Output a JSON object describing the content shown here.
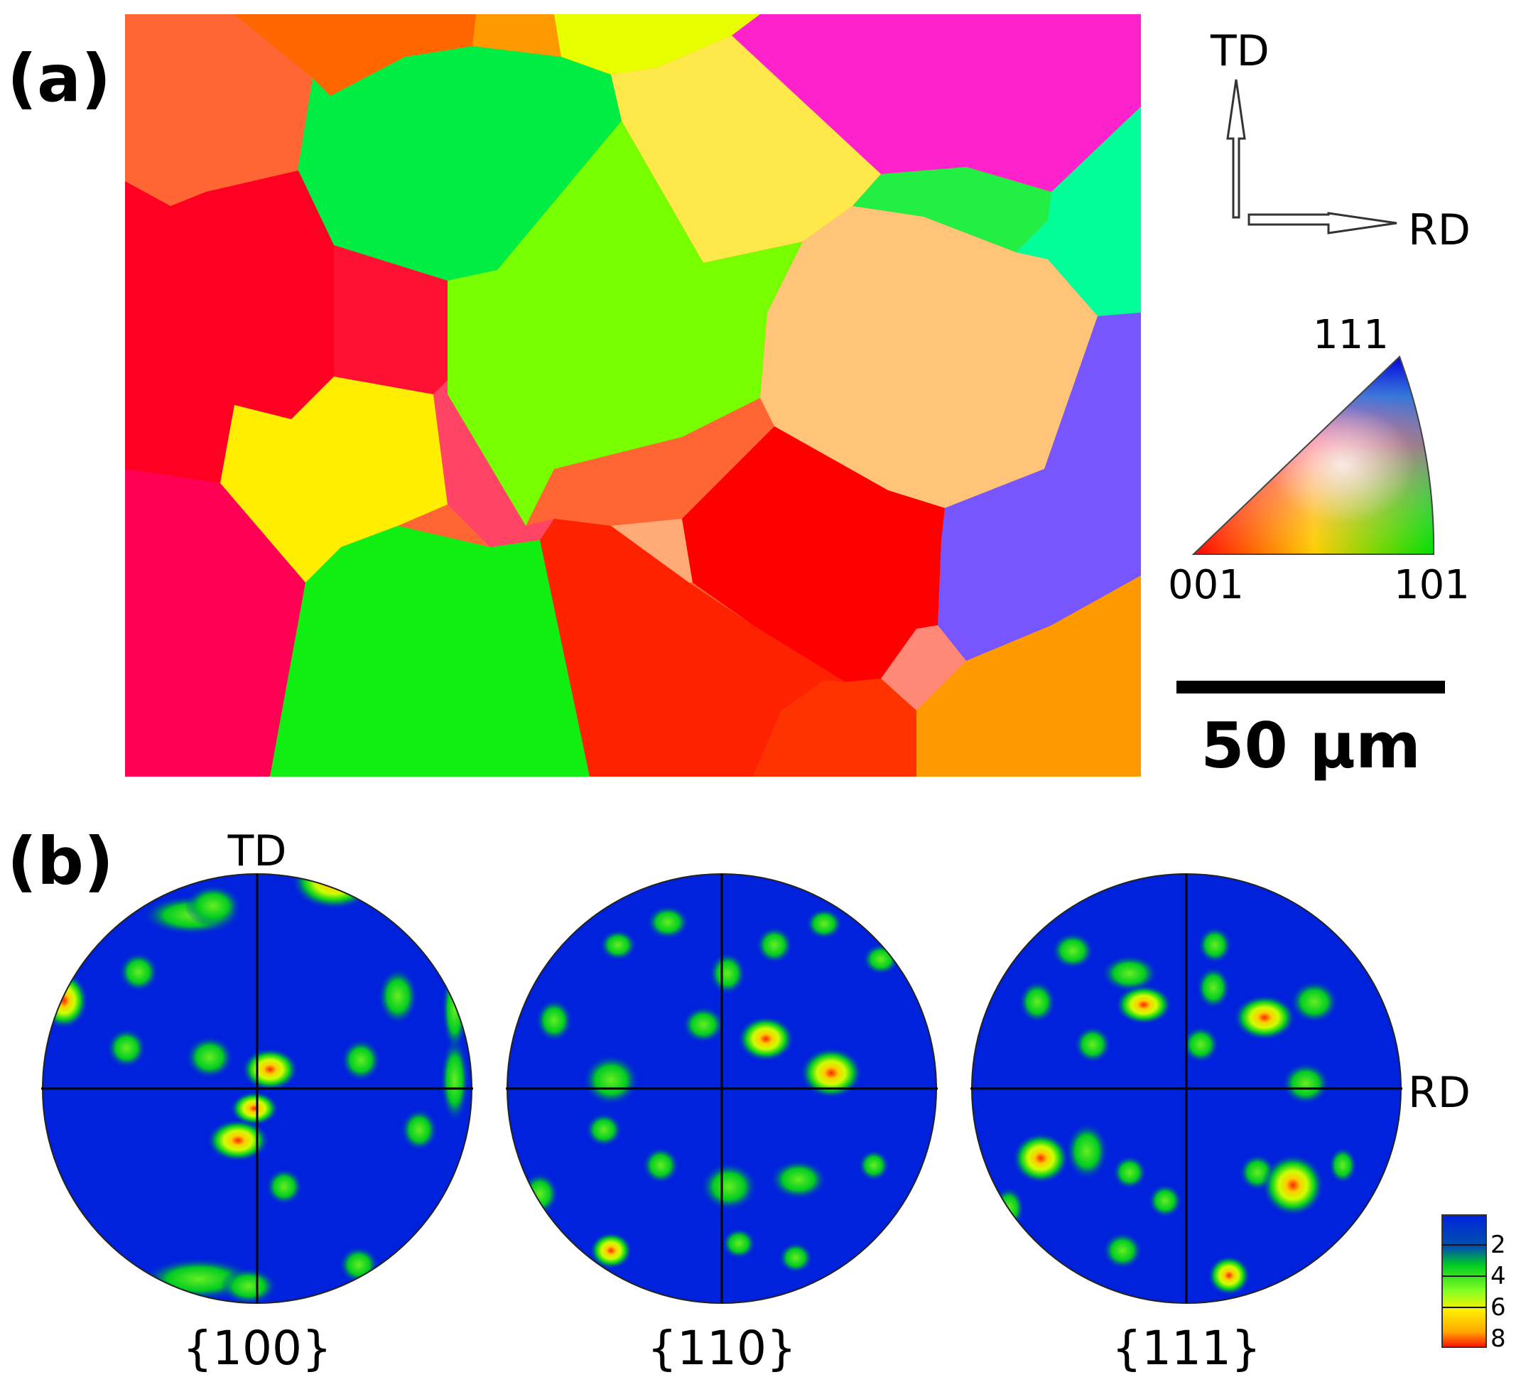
{
  "panel_a": {
    "label": "(a)",
    "axes": {
      "up": "TD",
      "right": "RD"
    },
    "ipf_key": {
      "top": "111",
      "bottom_left": "001",
      "bottom_right": "101"
    },
    "scale_bar": {
      "label": "50 µm"
    },
    "grain_colors": [
      "#ff6633",
      "#ff6600",
      "#ff9900",
      "#e8ff00",
      "#ff22cc",
      "#00ee44",
      "#ffe84a",
      "#22ee44",
      "#00ff99",
      "#ff0022",
      "#ff1133",
      "#77ff00",
      "#ffc477",
      "#7755ff",
      "#ffee00",
      "#ff4466",
      "#ff0055",
      "#11ee11",
      "#ff2200",
      "#ffaa77",
      "#ff0000",
      "#ff8877",
      "#ff9900",
      "#ff3300"
    ]
  },
  "panel_b": {
    "label": "(b)",
    "axes": {
      "top": "TD",
      "right": "RD"
    },
    "pole_figures": [
      {
        "label": "{100}"
      },
      {
        "label": "{110}"
      },
      {
        "label": "{111}"
      }
    ],
    "colorbar": {
      "ticks": [
        "2",
        "4",
        "6",
        "8"
      ],
      "colors": {
        "background": "#0022dd",
        "low": "#00cc22",
        "mid": "#ccff00",
        "high": "#ffcc00",
        "peak": "#ff2200"
      }
    }
  }
}
